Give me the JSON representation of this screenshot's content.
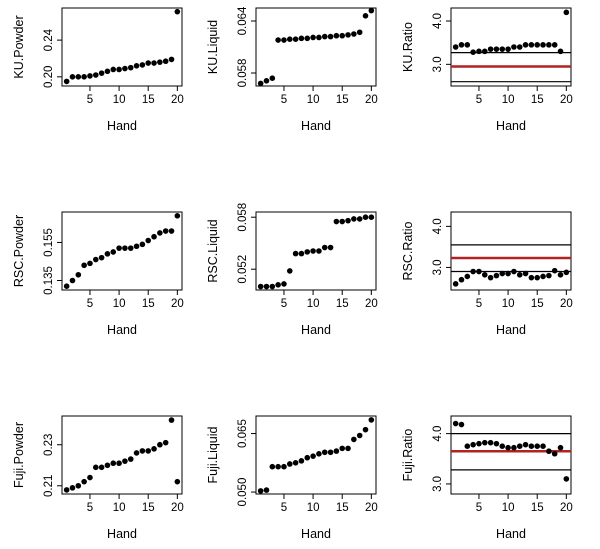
{
  "chart_data": [
    {
      "type": "scatter",
      "xlabel": "Hand",
      "ylabel": "KU.Powder",
      "xticks": [
        5,
        10,
        15,
        20
      ],
      "yticks": [
        0.2,
        0.24
      ],
      "ytick_labels": [
        "0.20",
        "0.24"
      ],
      "ylim": [
        0.19,
        0.275
      ],
      "x": [
        1,
        2,
        3,
        4,
        5,
        6,
        7,
        8,
        9,
        10,
        11,
        12,
        13,
        14,
        15,
        16,
        17,
        18,
        19,
        20
      ],
      "y": [
        0.195,
        0.2,
        0.2,
        0.2,
        0.201,
        0.202,
        0.204,
        0.206,
        0.208,
        0.208,
        0.209,
        0.21,
        0.212,
        0.213,
        0.215,
        0.215,
        0.216,
        0.217,
        0.219,
        0.271
      ],
      "hlines": []
    },
    {
      "type": "scatter",
      "xlabel": "Hand",
      "ylabel": "KU.Liquid",
      "xticks": [
        5,
        10,
        15,
        20
      ],
      "yticks": [
        0.058,
        0.064
      ],
      "ytick_labels": [
        "0.058",
        "0.064"
      ],
      "ylim": [
        0.0565,
        0.0655
      ],
      "x": [
        1,
        2,
        3,
        4,
        5,
        6,
        7,
        8,
        9,
        10,
        11,
        12,
        13,
        14,
        15,
        16,
        17,
        18,
        19,
        20
      ],
      "y": [
        0.0568,
        0.0571,
        0.0574,
        0.0618,
        0.0618,
        0.0619,
        0.0619,
        0.062,
        0.062,
        0.0621,
        0.0621,
        0.0622,
        0.0622,
        0.0623,
        0.0623,
        0.0624,
        0.0625,
        0.0627,
        0.0646,
        0.0652
      ],
      "hlines": []
    },
    {
      "type": "scatter",
      "xlabel": "Hand",
      "ylabel": "KU.Ratio",
      "xticks": [
        5,
        10,
        15,
        20
      ],
      "yticks": [
        3.0,
        4.0
      ],
      "ytick_labels": [
        "3.0",
        "4.0"
      ],
      "ylim": [
        2.5,
        4.3
      ],
      "x": [
        1,
        2,
        3,
        4,
        5,
        6,
        7,
        8,
        9,
        10,
        11,
        12,
        13,
        14,
        15,
        16,
        17,
        18,
        19,
        20
      ],
      "y": [
        3.4,
        3.45,
        3.45,
        3.28,
        3.3,
        3.3,
        3.35,
        3.35,
        3.35,
        3.35,
        3.4,
        3.4,
        3.45,
        3.45,
        3.45,
        3.45,
        3.45,
        3.45,
        3.3,
        4.2
      ],
      "hlines": [
        {
          "y": 3.27,
          "color": "#000000"
        },
        {
          "y": 2.95,
          "color": "#b22222"
        },
        {
          "y": 2.6,
          "color": "#000000"
        }
      ]
    },
    {
      "type": "scatter",
      "xlabel": "Hand",
      "ylabel": "RSC.Powder",
      "xticks": [
        5,
        10,
        15,
        20
      ],
      "yticks": [
        0.135,
        0.155
      ],
      "ytick_labels": [
        "0.135",
        "0.155"
      ],
      "ylim": [
        0.13,
        0.171
      ],
      "x": [
        1,
        2,
        3,
        4,
        5,
        6,
        7,
        8,
        9,
        10,
        11,
        12,
        13,
        14,
        15,
        16,
        17,
        18,
        19,
        20
      ],
      "y": [
        0.132,
        0.135,
        0.138,
        0.143,
        0.144,
        0.146,
        0.147,
        0.149,
        0.15,
        0.152,
        0.152,
        0.152,
        0.153,
        0.154,
        0.156,
        0.158,
        0.16,
        0.161,
        0.161,
        0.169
      ],
      "hlines": []
    },
    {
      "type": "scatter",
      "xlabel": "Hand",
      "ylabel": "RSC.Liquid",
      "xticks": [
        5,
        10,
        15,
        20
      ],
      "yticks": [
        0.052,
        0.058
      ],
      "ytick_labels": [
        "0.052",
        "0.058"
      ],
      "ylim": [
        0.0496,
        0.0586
      ],
      "x": [
        1,
        2,
        3,
        4,
        5,
        6,
        7,
        8,
        9,
        10,
        11,
        12,
        13,
        14,
        15,
        16,
        17,
        18,
        19,
        20
      ],
      "y": [
        0.05,
        0.05,
        0.05,
        0.0502,
        0.0503,
        0.0518,
        0.0538,
        0.0538,
        0.054,
        0.0541,
        0.0541,
        0.0545,
        0.0545,
        0.0575,
        0.0575,
        0.0576,
        0.0578,
        0.0578,
        0.058,
        0.058
      ],
      "hlines": []
    },
    {
      "type": "scatter",
      "xlabel": "Hand",
      "ylabel": "RSC.Ratio",
      "xticks": [
        5,
        10,
        15,
        20
      ],
      "yticks": [
        3.0,
        4.0
      ],
      "ytick_labels": [
        "3.0",
        "4.0"
      ],
      "ylim": [
        2.45,
        4.35
      ],
      "x": [
        1,
        2,
        3,
        4,
        5,
        6,
        7,
        8,
        9,
        10,
        11,
        12,
        13,
        14,
        15,
        16,
        17,
        18,
        19,
        20
      ],
      "y": [
        2.6,
        2.7,
        2.78,
        2.9,
        2.9,
        2.82,
        2.75,
        2.8,
        2.85,
        2.85,
        2.9,
        2.82,
        2.85,
        2.75,
        2.75,
        2.78,
        2.8,
        2.92,
        2.82,
        2.88
      ],
      "hlines": [
        {
          "y": 3.55,
          "color": "#000000"
        },
        {
          "y": 3.23,
          "color": "#b22222"
        },
        {
          "y": 2.9,
          "color": "#000000"
        }
      ]
    },
    {
      "type": "scatter",
      "xlabel": "Hand",
      "ylabel": "Fuji.Powder",
      "xticks": [
        5,
        10,
        15,
        20
      ],
      "yticks": [
        0.21,
        0.23
      ],
      "ytick_labels": [
        "0.21",
        "0.23"
      ],
      "ylim": [
        0.206,
        0.244
      ],
      "x": [
        1,
        2,
        3,
        4,
        5,
        6,
        7,
        8,
        9,
        10,
        11,
        12,
        13,
        14,
        15,
        16,
        17,
        18,
        19,
        20
      ],
      "y": [
        0.208,
        0.209,
        0.21,
        0.212,
        0.214,
        0.219,
        0.219,
        0.22,
        0.221,
        0.221,
        0.222,
        0.223,
        0.226,
        0.227,
        0.227,
        0.228,
        0.23,
        0.231,
        0.242,
        0.212
      ],
      "hlines": []
    },
    {
      "type": "scatter",
      "xlabel": "Hand",
      "ylabel": "Fuji.Liquid",
      "xticks": [
        5,
        10,
        15,
        20
      ],
      "yticks": [
        0.05,
        0.065
      ],
      "ytick_labels": [
        "0.050",
        "0.065"
      ],
      "ylim": [
        0.0495,
        0.0695
      ],
      "x": [
        1,
        2,
        3,
        4,
        5,
        6,
        7,
        8,
        9,
        10,
        11,
        12,
        13,
        14,
        15,
        16,
        17,
        18,
        19,
        20
      ],
      "y": [
        0.0503,
        0.0505,
        0.0565,
        0.0565,
        0.0565,
        0.0572,
        0.0575,
        0.058,
        0.0588,
        0.0592,
        0.0598,
        0.0602,
        0.0602,
        0.0605,
        0.0612,
        0.0612,
        0.0635,
        0.0645,
        0.066,
        0.0685
      ],
      "hlines": []
    },
    {
      "type": "scatter",
      "xlabel": "Hand",
      "ylabel": "Fuji.Ratio",
      "xticks": [
        5,
        10,
        15,
        20
      ],
      "yticks": [
        3.0,
        4.0
      ],
      "ytick_labels": [
        "3.0",
        "4.0"
      ],
      "ylim": [
        2.8,
        4.35
      ],
      "x": [
        1,
        2,
        3,
        4,
        5,
        6,
        7,
        8,
        9,
        10,
        11,
        12,
        13,
        14,
        15,
        16,
        17,
        18,
        19,
        20
      ],
      "y": [
        4.2,
        4.18,
        3.75,
        3.78,
        3.8,
        3.82,
        3.82,
        3.8,
        3.75,
        3.72,
        3.72,
        3.75,
        3.78,
        3.75,
        3.75,
        3.75,
        3.65,
        3.6,
        3.72,
        3.1
      ],
      "hlines": [
        {
          "y": 4.0,
          "color": "#000000"
        },
        {
          "y": 3.65,
          "color": "#b22222"
        },
        {
          "y": 3.28,
          "color": "#000000"
        }
      ]
    }
  ]
}
